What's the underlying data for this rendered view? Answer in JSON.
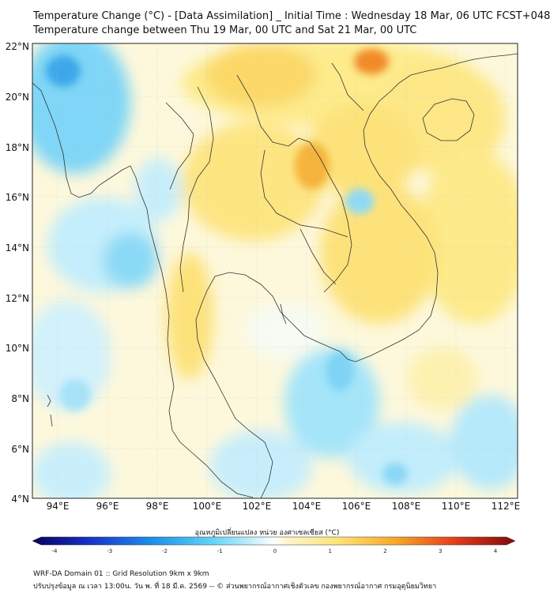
{
  "header": {
    "title_line1": "Temperature Change (°C) - [Data Assimilation] _ Initial Time : Wednesday 18 Mar, 06 UTC FCST+048",
    "title_line2": "Temperature change between Thu 19 Mar, 00 UTC and Sat 21 Mar, 00 UTC"
  },
  "map": {
    "lat_labels": [
      "22°N",
      "20°N",
      "18°N",
      "16°N",
      "14°N",
      "12°N",
      "10°N",
      "8°N",
      "6°N",
      "4°N"
    ],
    "lon_labels": [
      "94°E",
      "96°E",
      "98°E",
      "100°E",
      "102°E",
      "104°E",
      "106°E",
      "108°E",
      "110°E",
      "112°E"
    ],
    "colors": {
      "cold": "#35b7ee",
      "cool": "#b6ecfb",
      "neutral": "#fdfbe9",
      "warm": "#fde77c",
      "hot": "#f6b42b",
      "hottest": "#ee6a1e"
    }
  },
  "colorbar": {
    "title": "อุณหภูมิเปลี่ยนแปลง หน่วย องศาเซลเซียส (°C)",
    "ticks": [
      "-4",
      "-3",
      "-2",
      "-1",
      "0",
      "1",
      "2",
      "3",
      "4"
    ],
    "range": [
      -4,
      4
    ]
  },
  "footer": {
    "line1": "WRF-DA Domain 01 :: Grid Resolution 9km x 9km",
    "line2": "ปรับปรุงข้อมูล ณ เวลา 13:00น. วัน พ. ที่ 18 มี.ค. 2569 -- © ส่วนพยากรณ์อากาศเชิงตัวเลข กองพยากรณ์อากาศ กรมอุตุนิยมวิทยา"
  }
}
